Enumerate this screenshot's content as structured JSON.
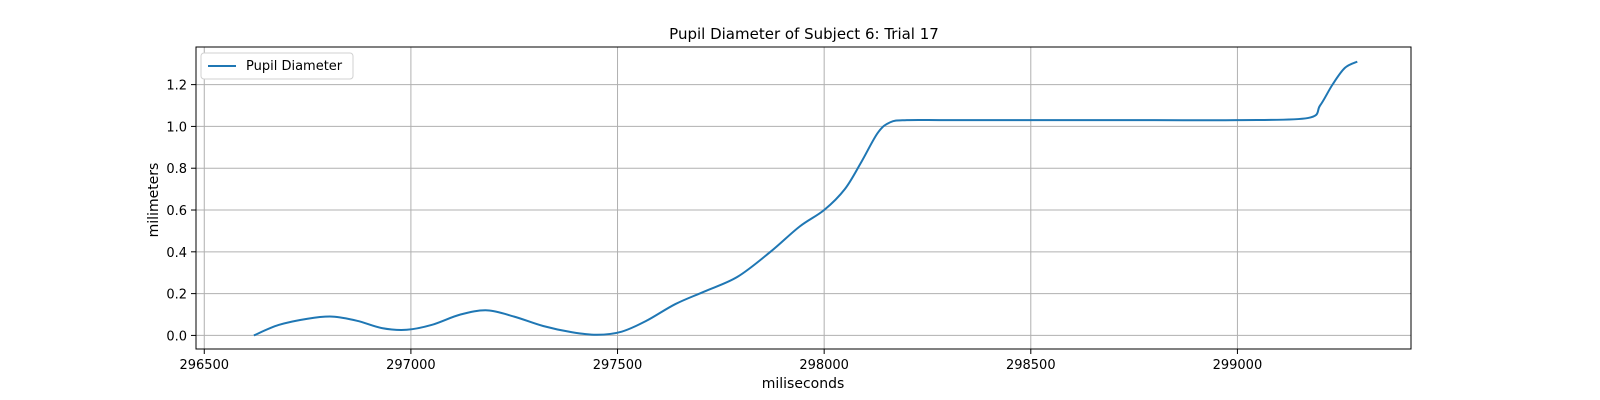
{
  "chart_data": {
    "type": "line",
    "title": "Pupil Diameter of Subject 6: Trial 17",
    "xlabel": "miliseconds",
    "ylabel": "milimeters",
    "xlim": [
      296480,
      299420
    ],
    "ylim": [
      -0.065,
      1.38
    ],
    "xticks": [
      296500,
      297000,
      297500,
      298000,
      298500,
      299000
    ],
    "yticks": [
      0.0,
      0.2,
      0.4,
      0.6,
      0.8,
      1.0,
      1.2
    ],
    "xtick_labels": [
      "296500",
      "297000",
      "297500",
      "298000",
      "298500",
      "299000"
    ],
    "ytick_labels": [
      "0.0",
      "0.2",
      "0.4",
      "0.6",
      "0.8",
      "1.0",
      "1.2"
    ],
    "grid": true,
    "legend": {
      "position": "top-left",
      "entries": [
        "Pupil Diameter"
      ]
    },
    "series": [
      {
        "name": "Pupil Diameter",
        "color": "#1f77b4",
        "x": [
          296620,
          296680,
          296750,
          296810,
          296870,
          296930,
          296990,
          297050,
          297120,
          297185,
          297250,
          297320,
          297390,
          297450,
          297510,
          297570,
          297640,
          297710,
          297790,
          297870,
          297940,
          298000,
          298050,
          298090,
          298130,
          298160,
          298200,
          298300,
          298500,
          298800,
          299000,
          299170,
          299200,
          299230,
          299260,
          299290
        ],
        "y": [
          0.0,
          0.05,
          0.08,
          0.09,
          0.07,
          0.035,
          0.027,
          0.05,
          0.1,
          0.12,
          0.09,
          0.045,
          0.015,
          0.003,
          0.018,
          0.07,
          0.15,
          0.21,
          0.28,
          0.4,
          0.52,
          0.6,
          0.7,
          0.83,
          0.97,
          1.02,
          1.03,
          1.03,
          1.03,
          1.03,
          1.03,
          1.04,
          1.1,
          1.2,
          1.28,
          1.31
        ]
      }
    ]
  }
}
